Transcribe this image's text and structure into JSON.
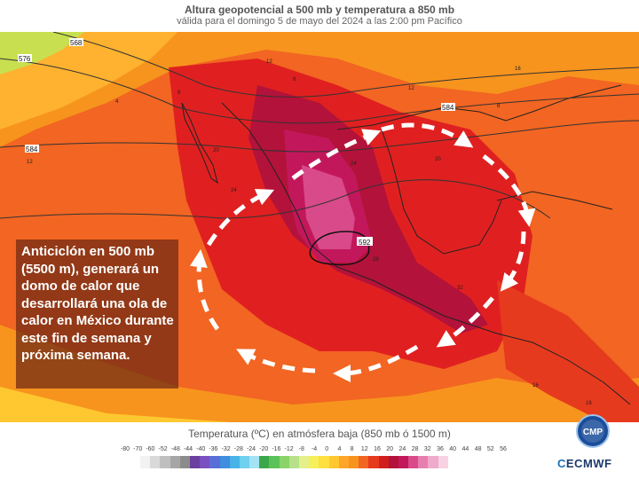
{
  "header": {
    "title": "Altura geopotencial a 500 mb y temperatura a 850 mb",
    "subtitle": "válida para el domingo 5 de mayo del 2024 a las 2:00 pm Pacífico"
  },
  "map": {
    "contour_labels": [
      "568",
      "576",
      "584",
      "584",
      "592"
    ],
    "small_labels": [
      "16",
      "12",
      "12",
      "4",
      "8",
      "20",
      "24",
      "24",
      "20",
      "28",
      "32",
      "16",
      "16",
      "12",
      "8",
      "8"
    ],
    "colors": {
      "heat_core": "#c2185b",
      "hot": "#e02020",
      "warm": "#f26522",
      "mild": "#f7941d",
      "cool": "#ffd24d",
      "cold": "#c8e050",
      "arrows": "#ffffff"
    }
  },
  "callout": {
    "text": "Anticiclón en 500 mb (5500 m), generará un domo de calor  que desarrollará una ola de calor en México durante este fin de semana y próxima semana."
  },
  "legend": {
    "title": "Temperatura (ºC) en atmósfera baja (850 mb ó 1500 m)",
    "ticks": [
      "-80",
      "-70",
      "-60",
      "-52",
      "-48",
      "-44",
      "-40",
      "-36",
      "-32",
      "-28",
      "-24",
      "-20",
      "-16",
      "-12",
      "-8",
      "-4",
      "0",
      "4",
      "8",
      "12",
      "16",
      "20",
      "24",
      "28",
      "32",
      "36",
      "40",
      "44",
      "48",
      "52",
      "56"
    ],
    "colors": [
      "#f2f2f2",
      "#d9d9d9",
      "#bfbfbf",
      "#a6a6a6",
      "#8c8c8c",
      "#6b3fa0",
      "#7a4fc0",
      "#5a6ed8",
      "#3f8ee0",
      "#49b3e8",
      "#6fd0ef",
      "#a3e3f5",
      "#3aa84a",
      "#5bc25a",
      "#8bd46a",
      "#b8e08a",
      "#e5f08a",
      "#f5ef5a",
      "#ffe040",
      "#ffc830",
      "#ffa52a",
      "#f7941d",
      "#f26522",
      "#e63a1e",
      "#d11f1f",
      "#b3123a",
      "#c2185b",
      "#d94a8a",
      "#e67fb0",
      "#f0aacb",
      "#f8d2e3"
    ]
  },
  "logos": {
    "cmp": "CMP",
    "ecmwf": "ECMWF"
  }
}
